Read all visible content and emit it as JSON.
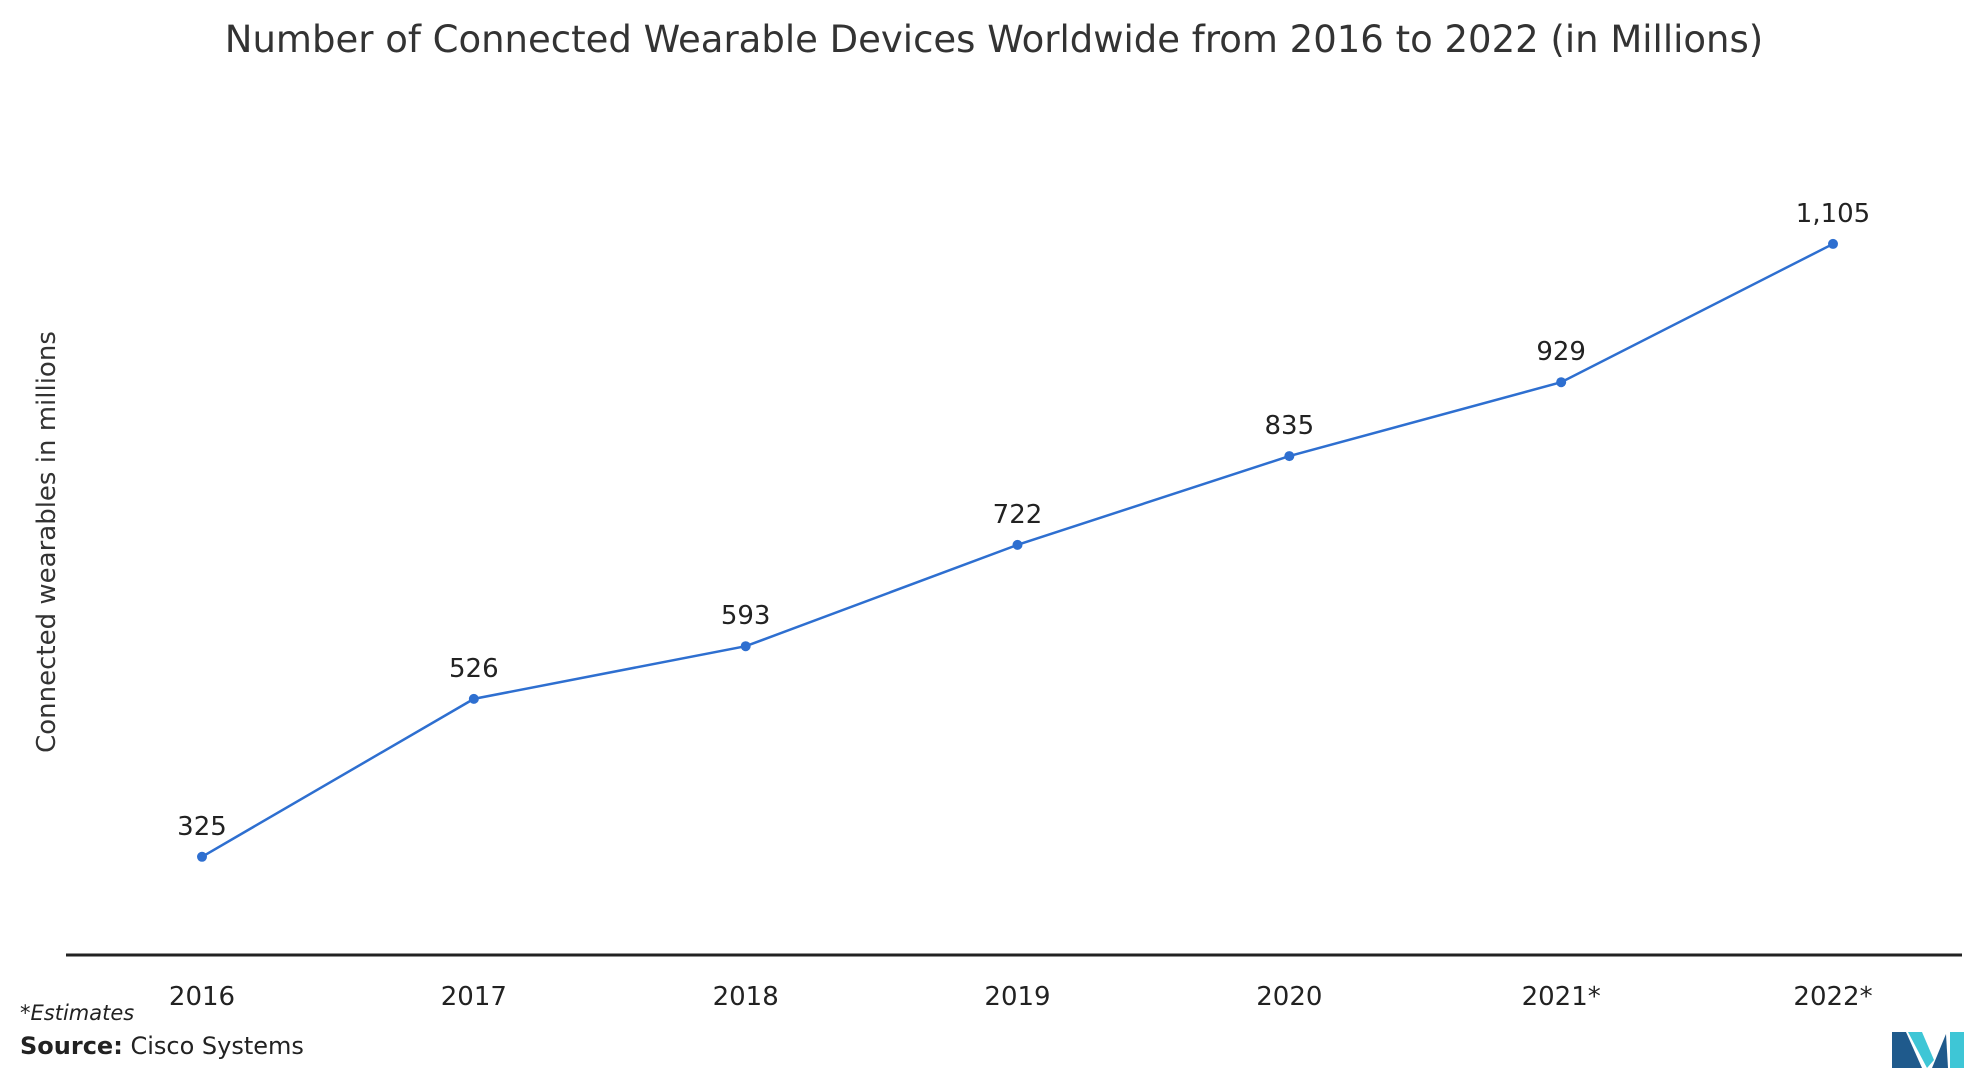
{
  "chart_data": {
    "type": "line",
    "title": "Number of Connected Wearable Devices Worldwide from 2016 to 2022 (in Millions)",
    "xlabel": "",
    "ylabel": "Connected wearables in millions",
    "categories": [
      "2016",
      "2017",
      "2018",
      "2019",
      "2020",
      "2021*",
      "2022*"
    ],
    "series": [
      {
        "values": [
          325,
          526,
          593,
          722,
          835,
          929,
          1105
        ],
        "labels": [
          "325",
          "526",
          "593",
          "722",
          "835",
          "929",
          "1,105"
        ]
      }
    ],
    "ylim": [
      200,
      1250
    ],
    "grid": false,
    "legend": "none",
    "colors": {
      "line": "#2e6fd0",
      "axis": "#222222"
    }
  },
  "footnote": "*Estimates",
  "source": {
    "label": "Source:",
    "value": "Cisco Systems"
  },
  "logo": {
    "icon": "mordor-intelligence-logo-icon",
    "colors": [
      "#1f5a8c",
      "#3ec6d6"
    ]
  }
}
